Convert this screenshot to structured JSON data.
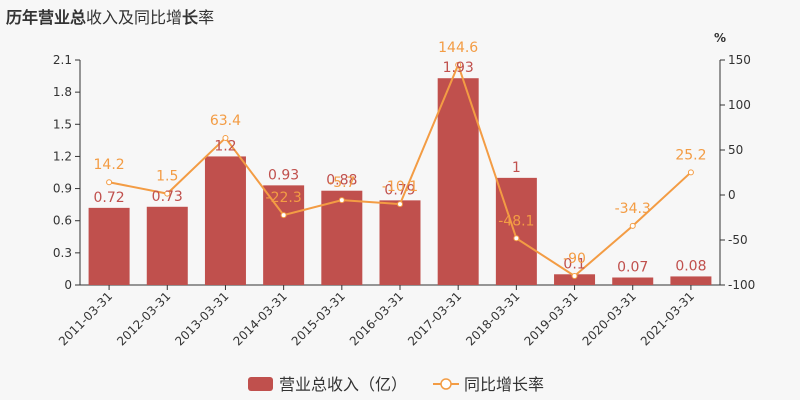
{
  "title": {
    "part1": "历年",
    "part2": "营业总",
    "part3": "收入及同比增",
    "part4": "长",
    "part5": "率"
  },
  "colors": {
    "bar": "#c0504d",
    "line": "#f39c44"
  },
  "right_axis_unit": "%",
  "chart_data": {
    "type": "bar",
    "categories": [
      "2011-03-31",
      "2012-03-31",
      "2013-03-31",
      "2014-03-31",
      "2015-03-31",
      "2016-03-31",
      "2017-03-31",
      "2018-03-31",
      "2019-03-31",
      "2020-03-31",
      "2021-03-31"
    ],
    "series": [
      {
        "name": "营业总收入（亿）",
        "type": "bar",
        "axis": "left",
        "values": [
          0.72,
          0.73,
          1.2,
          0.93,
          0.88,
          0.79,
          1.93,
          1,
          0.1,
          0.07,
          0.08
        ],
        "labels": [
          "0.72",
          "0.73",
          "1.2",
          "0.93",
          "0.88",
          "0.79",
          "1.93",
          "1",
          "0.1",
          "0.07",
          "0.08"
        ]
      },
      {
        "name": "同比增长率",
        "type": "line",
        "axis": "right",
        "values": [
          14.2,
          1.5,
          63.4,
          -22.3,
          -5.7,
          -10.1,
          144.6,
          -48.1,
          -90,
          -34.3,
          25.2
        ],
        "labels": [
          "14.2",
          "1.5",
          "63.4",
          "-22.3",
          "-5.7",
          "-10.1",
          "144.6",
          "-48.1",
          "-90",
          "-34.3",
          "25.2"
        ]
      }
    ],
    "y_left": {
      "ylim": [
        0,
        2.1
      ],
      "ticks": [
        "0",
        "0.3",
        "0.6",
        "0.9",
        "1.2",
        "1.5",
        "1.8",
        "2.1"
      ]
    },
    "y_right": {
      "ylim": [
        -100,
        150
      ],
      "ticks": [
        "-100",
        "-50",
        "0",
        "50",
        "100",
        "150"
      ]
    },
    "legend": "bottom-center",
    "grid": false
  }
}
